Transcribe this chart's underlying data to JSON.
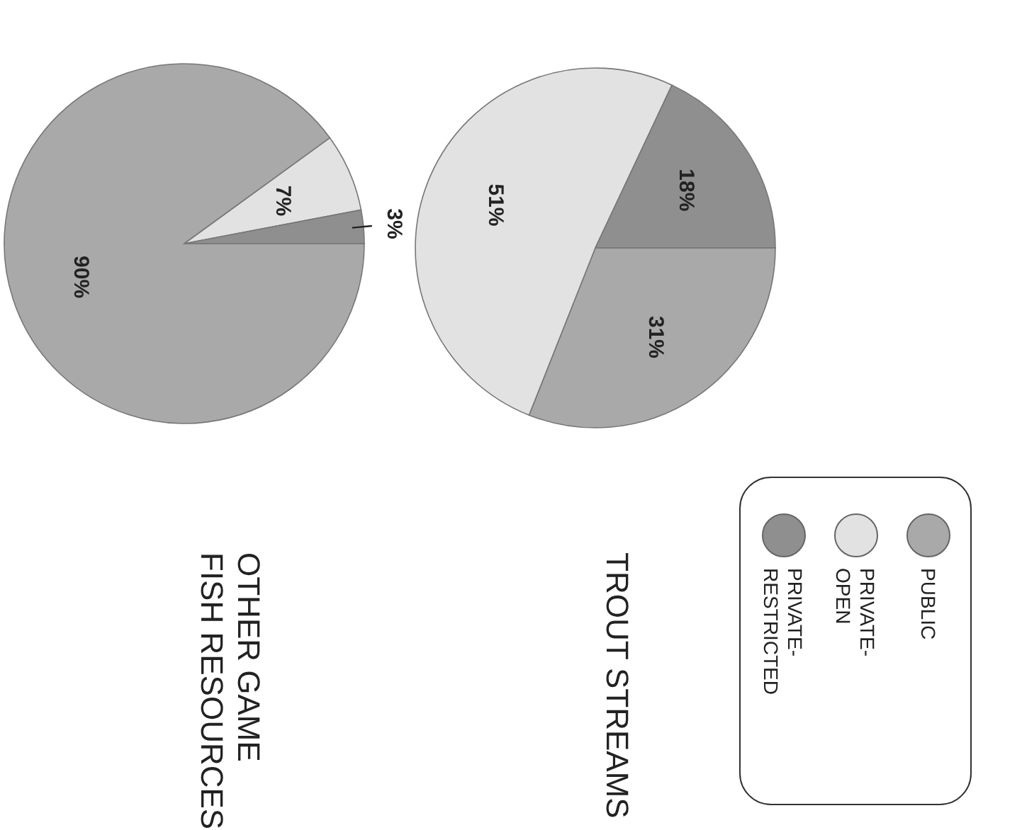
{
  "chart_data": [
    {
      "type": "pie",
      "title": "TROUT STREAMS",
      "categories": [
        "PUBLIC",
        "PRIVATE-OPEN",
        "PRIVATE-RESTRICTED"
      ],
      "values": [
        31,
        51,
        18
      ],
      "value_labels": [
        "31%",
        "51%",
        "18%"
      ],
      "colors": [
        "#a9a9a9",
        "#e2e2e2",
        "#8f8f8f"
      ],
      "legend": "bottom"
    },
    {
      "type": "pie",
      "title": "OTHER GAME FISH RESOURCES",
      "categories": [
        null,
        null,
        null
      ],
      "values": [
        90,
        7,
        3
      ],
      "value_labels": [
        "90%",
        "7%",
        "3%"
      ],
      "colors": [
        "#a9a9a9",
        "#e2e2e2",
        "#8f8f8f"
      ]
    }
  ]
}
